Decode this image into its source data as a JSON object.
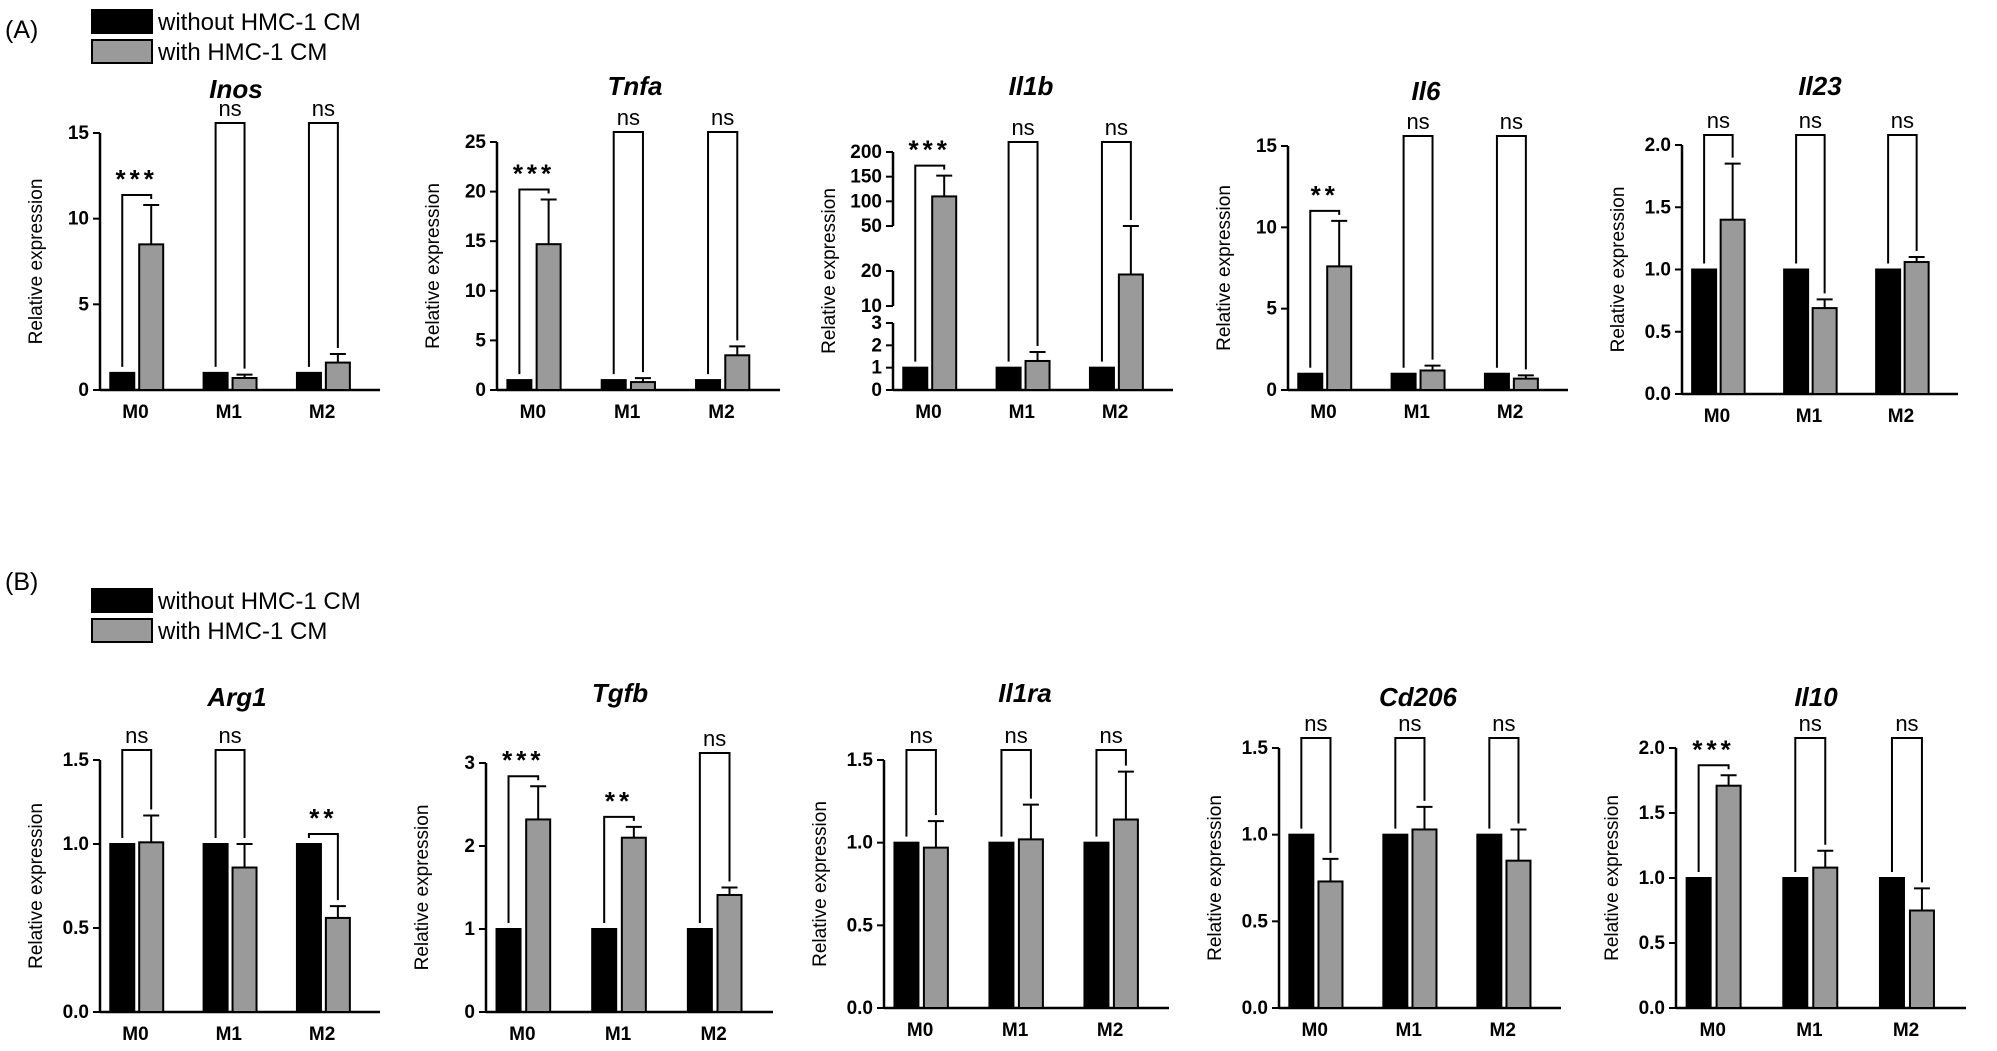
{
  "panels": [
    {
      "letter": "(A)",
      "legend": [
        {
          "label": "without HMC-1 CM",
          "color": "#000000"
        },
        {
          "label": "with HMC-1 CM",
          "color": "#9a9a9a"
        }
      ]
    },
    {
      "letter": "(B)",
      "legend": [
        {
          "label": "without HMC-1 CM",
          "color": "#000000"
        },
        {
          "label": "with HMC-1 CM",
          "color": "#9a9a9a"
        }
      ]
    }
  ],
  "chart_data": [
    {
      "type": "bar",
      "title": "Inos",
      "ylabel": "Relative expression",
      "categories": [
        "M0",
        "M1",
        "M2"
      ],
      "series": [
        {
          "name": "without HMC-1 CM",
          "color": "#000000",
          "values": [
            1,
            1,
            1
          ],
          "errors": [
            0,
            0,
            0
          ]
        },
        {
          "name": "with HMC-1 CM",
          "color": "#9a9a9a",
          "values": [
            8.5,
            0.7,
            1.6
          ],
          "errors": [
            2.3,
            0.2,
            0.5
          ]
        }
      ],
      "ylim": [
        0,
        15
      ],
      "yticks": [
        "0",
        "5",
        "10",
        "15"
      ],
      "significance": [
        "***",
        "ns",
        "ns"
      ]
    },
    {
      "type": "bar",
      "title": "Tnfa",
      "ylabel": "Relative expression",
      "categories": [
        "M0",
        "M1",
        "M2"
      ],
      "series": [
        {
          "name": "without HMC-1 CM",
          "color": "#000000",
          "values": [
            1,
            1,
            1
          ],
          "errors": [
            0,
            0,
            0
          ]
        },
        {
          "name": "with HMC-1 CM",
          "color": "#9a9a9a",
          "values": [
            14.7,
            0.8,
            3.5
          ],
          "errors": [
            4.5,
            0.4,
            0.9
          ]
        }
      ],
      "ylim": [
        0,
        25
      ],
      "yticks": [
        "0",
        "5",
        "10",
        "15",
        "20",
        "25"
      ],
      "significance": [
        "***",
        "ns",
        "ns"
      ]
    },
    {
      "type": "bar",
      "title": "Il1b",
      "ylabel": "Relative expression",
      "categories": [
        "M0",
        "M1",
        "M2"
      ],
      "series": [
        {
          "name": "without HMC-1 CM",
          "color": "#000000",
          "values": [
            1,
            1,
            1
          ],
          "errors": [
            0,
            0,
            0
          ]
        },
        {
          "name": "with HMC-1 CM",
          "color": "#9a9a9a",
          "values": [
            110,
            1.3,
            19
          ],
          "errors": [
            42,
            0.4,
            4
          ]
        }
      ],
      "axis_breaks": true,
      "yticks": [
        "0",
        "1",
        "2",
        "3",
        "10",
        "20",
        "50",
        "100",
        "150",
        "200"
      ],
      "significance": [
        "***",
        "ns",
        "ns"
      ]
    },
    {
      "type": "bar",
      "title": "Il6",
      "ylabel": "Relative expression",
      "categories": [
        "M0",
        "M1",
        "M2"
      ],
      "series": [
        {
          "name": "without HMC-1 CM",
          "color": "#000000",
          "values": [
            1,
            1,
            1
          ],
          "errors": [
            0,
            0,
            0
          ]
        },
        {
          "name": "with HMC-1 CM",
          "color": "#9a9a9a",
          "values": [
            7.6,
            1.2,
            0.7
          ],
          "errors": [
            2.8,
            0.3,
            0.2
          ]
        }
      ],
      "ylim": [
        0,
        15
      ],
      "yticks": [
        "0",
        "5",
        "10",
        "15"
      ],
      "significance": [
        "**",
        "ns",
        "ns"
      ]
    },
    {
      "type": "bar",
      "title": "Il23",
      "ylabel": "Relative expression",
      "categories": [
        "M0",
        "M1",
        "M2"
      ],
      "series": [
        {
          "name": "without HMC-1 CM",
          "color": "#000000",
          "values": [
            1,
            1,
            1
          ],
          "errors": [
            0,
            0,
            0
          ]
        },
        {
          "name": "with HMC-1 CM",
          "color": "#9a9a9a",
          "values": [
            1.4,
            0.69,
            1.06
          ],
          "errors": [
            0.45,
            0.07,
            0.04
          ]
        }
      ],
      "ylim": [
        0,
        2.0
      ],
      "yticks": [
        "0.0",
        "0.5",
        "1.0",
        "1.5",
        "2.0"
      ],
      "significance": [
        "ns",
        "ns",
        "ns"
      ]
    },
    {
      "type": "bar",
      "title": "Arg1",
      "ylabel": "Relative expression",
      "categories": [
        "M0",
        "M1",
        "M2"
      ],
      "series": [
        {
          "name": "without HMC-1 CM",
          "color": "#000000",
          "values": [
            1,
            1,
            1
          ],
          "errors": [
            0,
            0,
            0
          ]
        },
        {
          "name": "with HMC-1 CM",
          "color": "#9a9a9a",
          "values": [
            1.01,
            0.86,
            0.56
          ],
          "errors": [
            0.16,
            0.14,
            0.07
          ]
        }
      ],
      "ylim": [
        0,
        1.5
      ],
      "yticks": [
        "0.0",
        "0.5",
        "1.0",
        "1.5"
      ],
      "significance": [
        "ns",
        "ns",
        "**"
      ]
    },
    {
      "type": "bar",
      "title": "Tgfb",
      "ylabel": "Relative expression",
      "categories": [
        "M0",
        "M1",
        "M2"
      ],
      "series": [
        {
          "name": "without HMC-1 CM",
          "color": "#000000",
          "values": [
            1,
            1,
            1
          ],
          "errors": [
            0,
            0,
            0
          ]
        },
        {
          "name": "with HMC-1 CM",
          "color": "#9a9a9a",
          "values": [
            2.32,
            2.1,
            1.41
          ],
          "errors": [
            0.4,
            0.13,
            0.09
          ]
        }
      ],
      "ylim": [
        0,
        3
      ],
      "yticks": [
        "0",
        "1",
        "2",
        "3"
      ],
      "significance": [
        "***",
        "**",
        "ns"
      ]
    },
    {
      "type": "bar",
      "title": "Il1ra",
      "ylabel": "Relative expression",
      "categories": [
        "M0",
        "M1",
        "M2"
      ],
      "series": [
        {
          "name": "without HMC-1 CM",
          "color": "#000000",
          "values": [
            1,
            1,
            1
          ],
          "errors": [
            0,
            0,
            0
          ]
        },
        {
          "name": "with HMC-1 CM",
          "color": "#9a9a9a",
          "values": [
            0.97,
            1.02,
            1.14
          ],
          "errors": [
            0.16,
            0.21,
            0.29
          ]
        }
      ],
      "ylim": [
        0,
        1.5
      ],
      "yticks": [
        "0.0",
        "0.5",
        "1.0",
        "1.5"
      ],
      "significance": [
        "ns",
        "ns",
        "ns"
      ]
    },
    {
      "type": "bar",
      "title": "Cd206",
      "ylabel": "Relative expression",
      "categories": [
        "M0",
        "M1",
        "M2"
      ],
      "series": [
        {
          "name": "without HMC-1 CM",
          "color": "#000000",
          "values": [
            1,
            1,
            1
          ],
          "errors": [
            0,
            0,
            0
          ]
        },
        {
          "name": "with HMC-1 CM",
          "color": "#9a9a9a",
          "values": [
            0.73,
            1.03,
            0.85
          ],
          "errors": [
            0.13,
            0.13,
            0.18
          ]
        }
      ],
      "ylim": [
        0,
        1.5
      ],
      "yticks": [
        "0.0",
        "0.5",
        "1.0",
        "1.5"
      ],
      "significance": [
        "ns",
        "ns",
        "ns"
      ]
    },
    {
      "type": "bar",
      "title": "Il10",
      "ylabel": "Relative expression",
      "categories": [
        "M0",
        "M1",
        "M2"
      ],
      "series": [
        {
          "name": "without HMC-1 CM",
          "color": "#000000",
          "values": [
            1,
            1,
            1
          ],
          "errors": [
            0,
            0,
            0
          ]
        },
        {
          "name": "with HMC-1 CM",
          "color": "#9a9a9a",
          "values": [
            1.71,
            1.08,
            0.75
          ],
          "errors": [
            0.08,
            0.13,
            0.17
          ]
        }
      ],
      "ylim": [
        0,
        2.0
      ],
      "yticks": [
        "0.0",
        "0.5",
        "1.0",
        "1.5",
        "2.0"
      ],
      "significance": [
        "***",
        "ns",
        "ns"
      ]
    }
  ]
}
